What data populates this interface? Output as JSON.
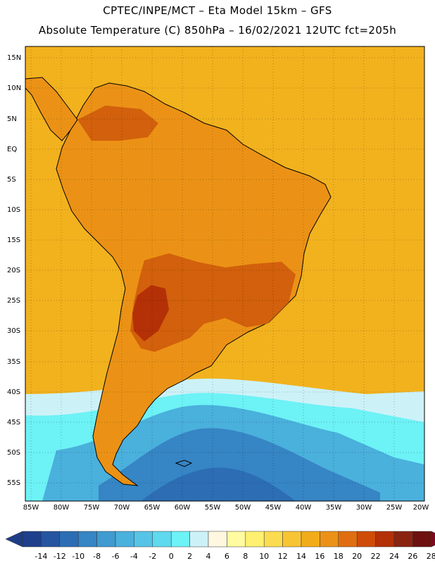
{
  "header": {
    "line1": "CPTEC/INPE/MCT –  Eta Model 15km – GFS",
    "line2": "Absolute Temperature (C) 850hPa – 16/02/2021 12UTC fct=205h"
  },
  "axes": {
    "lat_labels": [
      "15N",
      "10N",
      "5N",
      "EQ",
      "5S",
      "10S",
      "15S",
      "20S",
      "25S",
      "30S",
      "35S",
      "40S",
      "45S",
      "50S",
      "55S"
    ],
    "lon_labels": [
      "85W",
      "80W",
      "75W",
      "70W",
      "65W",
      "60W",
      "55W",
      "50W",
      "45W",
      "40W",
      "35W",
      "30W",
      "25W",
      "20W"
    ]
  },
  "colorbar": {
    "labels": [
      "-14",
      "-12",
      "-10",
      "-8",
      "-6",
      "-4",
      "-2",
      "0",
      "2",
      "4",
      "6",
      "8",
      "10",
      "12",
      "14",
      "16",
      "18",
      "20",
      "22",
      "24",
      "26",
      "28"
    ],
    "colors": [
      "#1e3f8c",
      "#2555a0",
      "#2c6db4",
      "#3685c4",
      "#3f9bd0",
      "#4ab0dc",
      "#56c4e6",
      "#5fd9ee",
      "#6df2f6",
      "#ccf2f8",
      "#fff7e0",
      "#fffba0",
      "#fff070",
      "#fbdc50",
      "#f7c434",
      "#f2ac1a",
      "#eb9216",
      "#e06e10",
      "#cf4c08",
      "#b43006",
      "#8a2410",
      "#6e1010"
    ],
    "min_color": "#1e3c86",
    "max_color": "#7a0a20"
  },
  "map": {
    "ocean_color": "#f2b21e",
    "land_color": "#eb9216",
    "hot_color": "#d2600c",
    "cold_colors": [
      "#ccf2f8",
      "#6df2f6",
      "#4ab0dc",
      "#3685c4",
      "#2c6db4"
    ]
  }
}
